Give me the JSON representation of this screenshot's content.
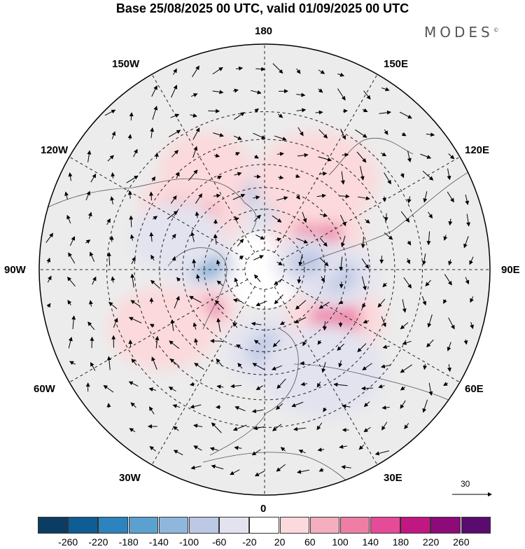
{
  "title": "Base 25/08/2025 00 UTC, valid 01/09/2025 00 UTC",
  "brand": "MODES",
  "brand_mark": "©",
  "lon_labels": {
    "n180": "180",
    "w150": "150W",
    "e150": "150E",
    "w120": "120W",
    "e120": "120E",
    "w90": "90W",
    "e90": "90E",
    "w60": "60W",
    "e60": "60E",
    "w30": "30W",
    "e30": "30E",
    "s0": "0"
  },
  "vector_reference": "30",
  "colorbar": {
    "colors": [
      "#0b3d62",
      "#0f5d95",
      "#2c83bd",
      "#5aa1cf",
      "#8fb7dc",
      "#bdc8e4",
      "#e3e3f0",
      "#ffffff",
      "#fbd9dc",
      "#f5aebd",
      "#ef7ea5",
      "#e54b98",
      "#c21783",
      "#8c0b78",
      "#5a0c6e"
    ],
    "ticks": [
      "-260",
      "-220",
      "-180",
      "-140",
      "-100",
      "-60",
      "-20",
      "20",
      "60",
      "100",
      "140",
      "180",
      "220",
      "260"
    ]
  },
  "anomalies": [
    {
      "lon": 160,
      "lat": 58,
      "value": 170,
      "size": 1.0
    },
    {
      "lon": 180,
      "lat": 54,
      "value": -110,
      "size": 1.25
    },
    {
      "lon": 125,
      "lat": 58,
      "value": 130,
      "size": 1.2
    },
    {
      "lon": -95,
      "lat": 60,
      "value": -150,
      "size": 0.9
    },
    {
      "lon": -55,
      "lat": 55,
      "value": 160,
      "size": 0.8
    },
    {
      "lon": 5,
      "lat": 50,
      "value": -90,
      "size": 1.2
    },
    {
      "lon": 55,
      "lat": 48,
      "value": 110,
      "size": 1.3
    },
    {
      "lon": 85,
      "lat": 55,
      "value": -100,
      "size": 1.1
    },
    {
      "lon": 100,
      "lat": 68,
      "value": -70,
      "size": 0.9
    },
    {
      "lon": -165,
      "lat": 52,
      "value": -90,
      "size": 0.8
    },
    {
      "lon": -130,
      "lat": 45,
      "value": 60,
      "size": 1.4
    },
    {
      "lon": -110,
      "lat": 45,
      "value": -40,
      "size": 1.2
    },
    {
      "lon": -60,
      "lat": 35,
      "value": 50,
      "size": 1.4
    },
    {
      "lon": 30,
      "lat": 35,
      "value": -50,
      "size": 1.6
    },
    {
      "lon": 150,
      "lat": 40,
      "value": 40,
      "size": 1.6
    },
    {
      "lon": -150,
      "lat": 35,
      "value": 40,
      "size": 1.2
    }
  ]
}
